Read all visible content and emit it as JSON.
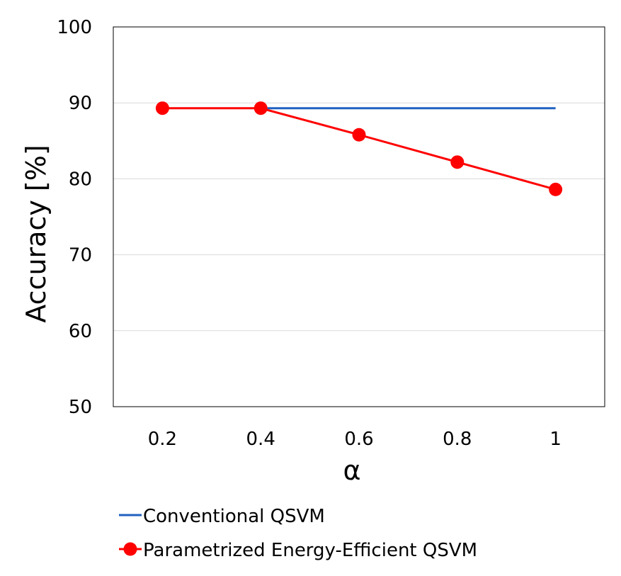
{
  "chart_data": {
    "type": "line",
    "title": "",
    "xlabel": "α",
    "ylabel": "Accuracy [%]",
    "categories": [
      "0.2",
      "0.4",
      "0.6",
      "0.8",
      "1"
    ],
    "ylim": [
      50,
      100
    ],
    "yticks": [
      "50",
      "60",
      "70",
      "80",
      "90",
      "100"
    ],
    "grid": true,
    "legend_position": "bottom",
    "series": [
      {
        "name": "Conventional QSVM",
        "color": "#2060c0",
        "marker": "none",
        "x": [
          "0.4",
          "0.6",
          "0.8",
          "1"
        ],
        "values": [
          89.3,
          89.3,
          89.3,
          89.3
        ]
      },
      {
        "name": "Parametrized Energy-Efficient QSVM",
        "color": "#ff0000",
        "marker": "circle",
        "x": [
          "0.2",
          "0.4",
          "0.6",
          "0.8",
          "1"
        ],
        "values": [
          89.3,
          89.3,
          85.8,
          82.2,
          78.6
        ]
      }
    ]
  }
}
